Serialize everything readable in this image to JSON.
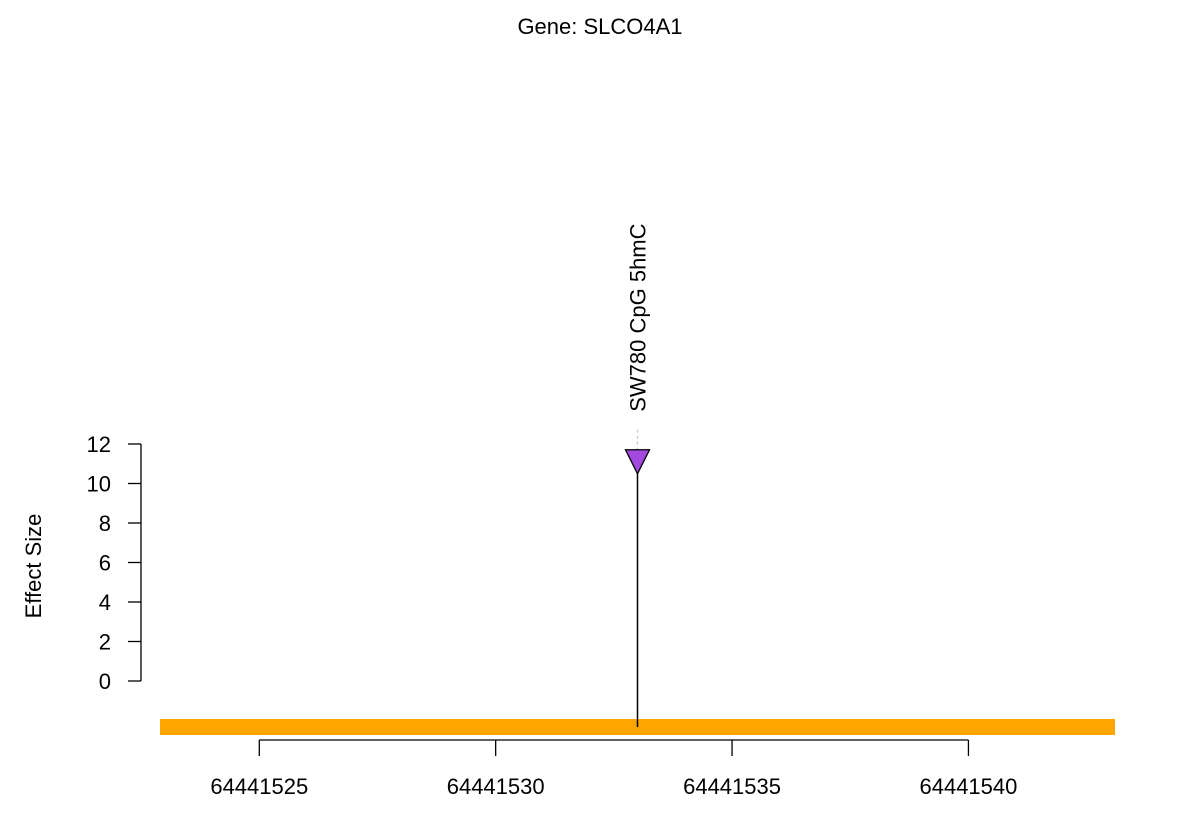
{
  "chart_data": {
    "type": "lollipop",
    "title": "Gene: SLCO4A1",
    "ylabel": "Effect Size",
    "xlabel": "",
    "ylim": [
      0,
      12
    ],
    "yticks": [
      0,
      2,
      4,
      6,
      8,
      10,
      12
    ],
    "xlim": [
      64441522.9,
      64441543.1
    ],
    "xticks": [
      64441525,
      64441530,
      64441535,
      64441540
    ],
    "gene_track": {
      "start": 64441522.9,
      "end": 64441543.1,
      "color": "#FFA500"
    },
    "points": [
      {
        "x": 64441533,
        "y": 11.1,
        "label": "SW780 CpG 5hmC",
        "marker": "down-triangle",
        "color": "#A349E0"
      }
    ]
  }
}
